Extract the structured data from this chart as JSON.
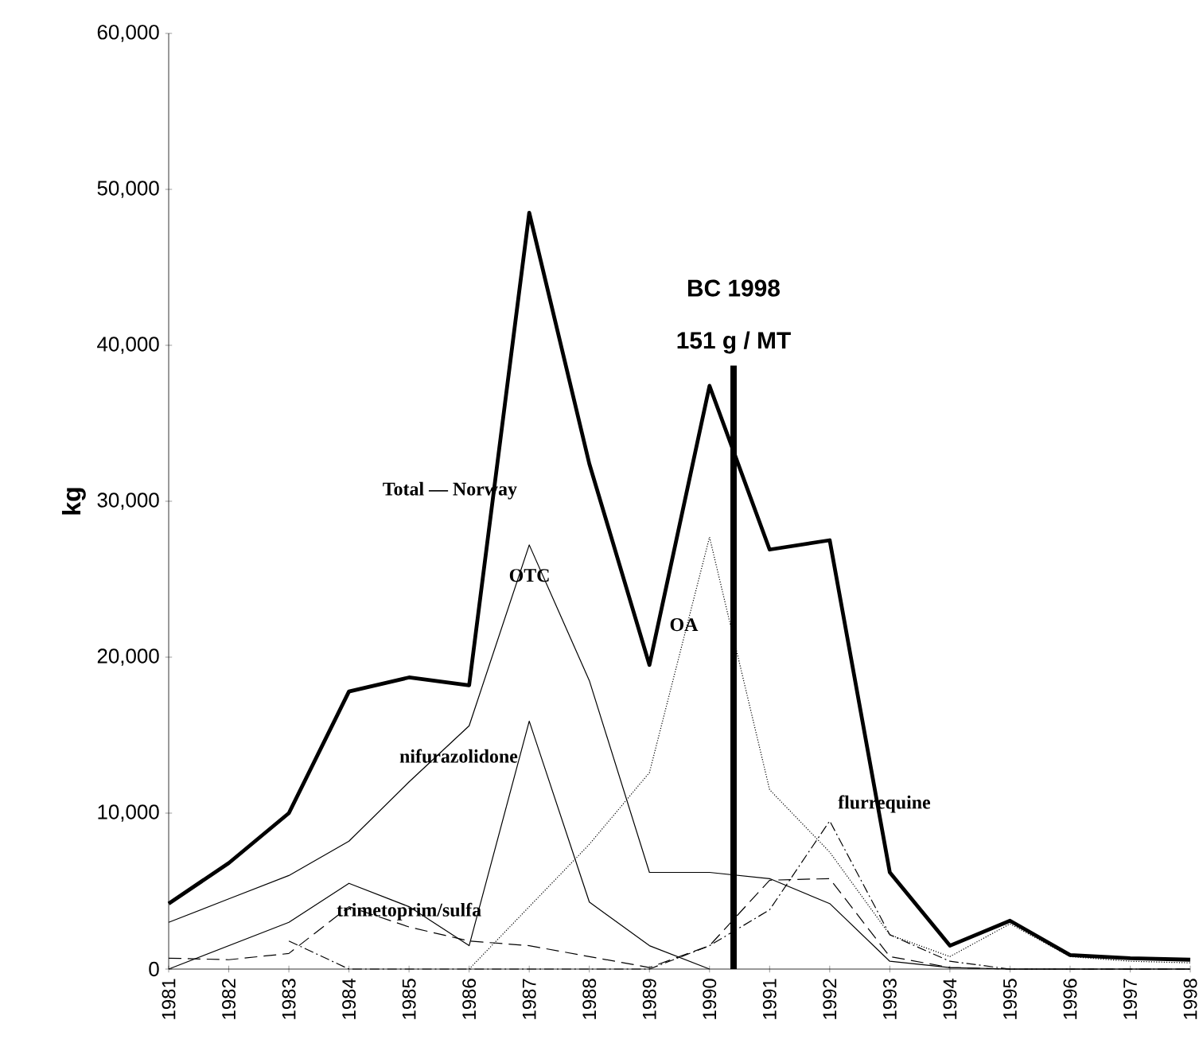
{
  "chart_data": {
    "type": "line",
    "ylabel": "kg",
    "x": [
      1981,
      1982,
      1983,
      1984,
      1985,
      1986,
      1987,
      1988,
      1989,
      1990,
      1991,
      1992,
      1993,
      1994,
      1995,
      1996,
      1997,
      1998
    ],
    "xlim": [
      1981,
      1998
    ],
    "xticks": [
      1981,
      1982,
      1983,
      1984,
      1985,
      1986,
      1987,
      1988,
      1989,
      1990,
      1991,
      1992,
      1993,
      1994,
      1995,
      1996,
      1997,
      1998
    ],
    "ylim": [
      0,
      60000
    ],
    "yticks": [
      0,
      {
        "value": 10000,
        "label": "10,000"
      },
      {
        "value": 20000,
        "label": "20,000"
      },
      {
        "value": 30000,
        "label": "30,000"
      },
      {
        "value": 40000,
        "label": "40,000"
      },
      {
        "value": 50000,
        "label": "50,000"
      },
      {
        "value": 60000,
        "label": "60,000"
      }
    ],
    "grid": false,
    "series": [
      {
        "name": "Total — Norway",
        "color": "#000000",
        "line_style": "solid",
        "values": [
          4200,
          6800,
          10000,
          17800,
          18700,
          18200,
          48500,
          32400,
          19500,
          37400,
          26900,
          27500,
          6200,
          1500,
          3100,
          900,
          700,
          600
        ]
      },
      {
        "name": "OTC",
        "color": "#000000",
        "line_style": "solid",
        "values": [
          3000,
          4500,
          6000,
          8200,
          12000,
          15600,
          27200,
          18500,
          6200,
          6200,
          5800,
          4200,
          500,
          100,
          0,
          0,
          0,
          0
        ]
      },
      {
        "name": "nifurazolidone",
        "color": "#000000",
        "line_style": "solid",
        "values": [
          0,
          1500,
          3000,
          5500,
          4000,
          1500,
          15900,
          4300,
          1500,
          0,
          null,
          null,
          null,
          null,
          null,
          null,
          null,
          null
        ]
      },
      {
        "name": "OA",
        "color": "#000000",
        "line_style": "dotted",
        "values": [
          null,
          null,
          null,
          null,
          null,
          0,
          4000,
          8000,
          12600,
          27700,
          11500,
          7500,
          2200,
          800,
          2900,
          800,
          500,
          400
        ]
      },
      {
        "name": "flurrequine",
        "color": "#000000",
        "line_style": "dashdot",
        "values": [
          null,
          null,
          1800,
          0,
          0,
          0,
          0,
          0,
          0,
          1500,
          3800,
          9500,
          2200,
          500,
          0,
          0,
          0,
          0
        ]
      },
      {
        "name": "trimetoprim/sulfa",
        "color": "#000000",
        "line_style": "dashed",
        "values": [
          700,
          600,
          1000,
          4000,
          2700,
          1800,
          1500,
          800,
          100,
          1500,
          5700,
          5800,
          800,
          100,
          0,
          0,
          0,
          0
        ]
      }
    ],
    "ref_lines": [
      {
        "axis": "x",
        "value": 1990.4,
        "color": "#000000",
        "label": "151 g / MT"
      }
    ],
    "annotations": [
      "BC 1998"
    ]
  }
}
